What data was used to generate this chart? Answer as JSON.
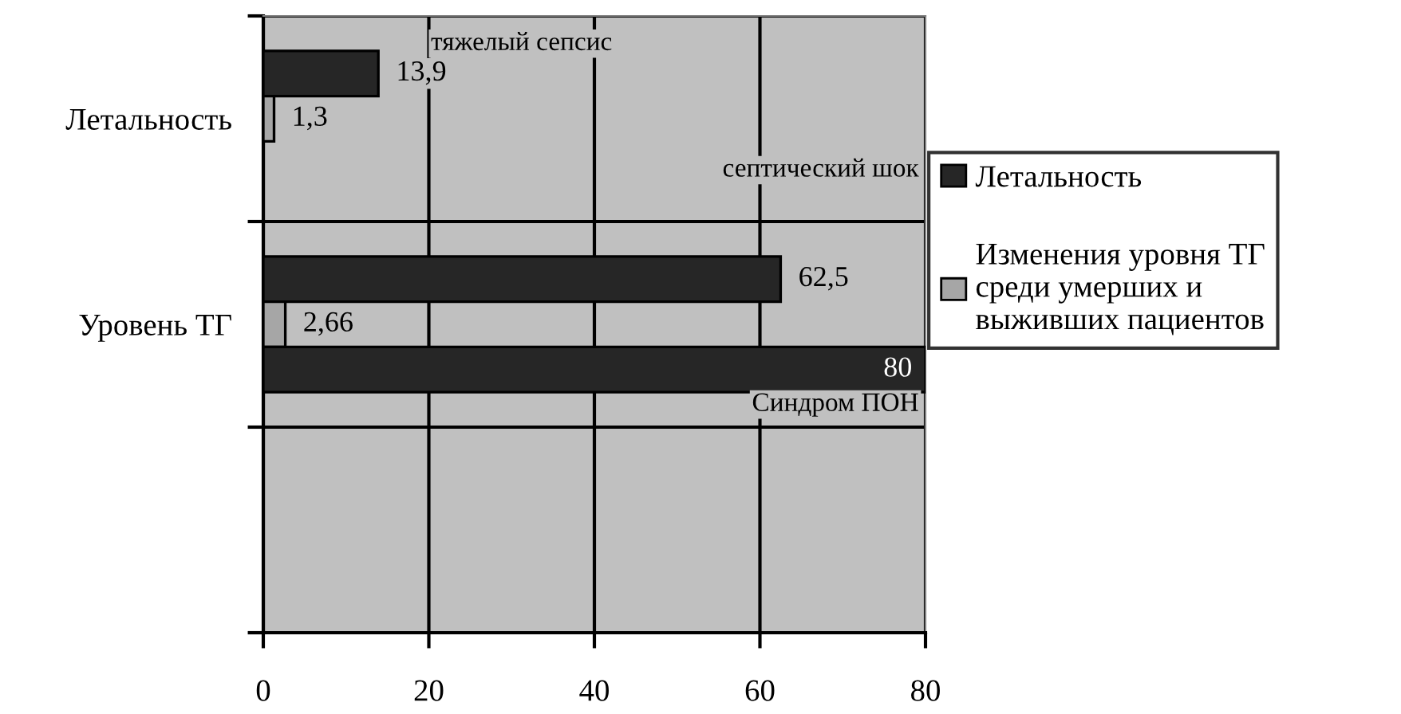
{
  "chart_data": {
    "type": "bar",
    "orientation": "horizontal",
    "categories": [
      "Летальность",
      "Уровень ТГ",
      null
    ],
    "series": [
      {
        "name": "Летальность",
        "color": "#262626",
        "values": [
          13.9,
          62.5,
          null
        ],
        "value_labels": [
          "13,9",
          "62,5",
          null
        ]
      },
      {
        "name": "Изменения уровня ТГ среди умерших и выживших пациентов",
        "color": "#a6a6a6",
        "values": [
          1.3,
          2.66,
          null
        ],
        "value_labels": [
          "1,3",
          "2,66",
          null
        ]
      },
      {
        "color": "#262626",
        "values": [
          null,
          80,
          null
        ],
        "value_labels": [
          null,
          "80",
          null
        ]
      }
    ],
    "annotations": [
      "тяжелый сепсис",
      "септический шок",
      "Синдром ПОН"
    ],
    "xlim": [
      0,
      80
    ],
    "xticks": [
      0,
      20,
      40,
      60,
      80
    ],
    "grid": true,
    "legend": "right"
  }
}
